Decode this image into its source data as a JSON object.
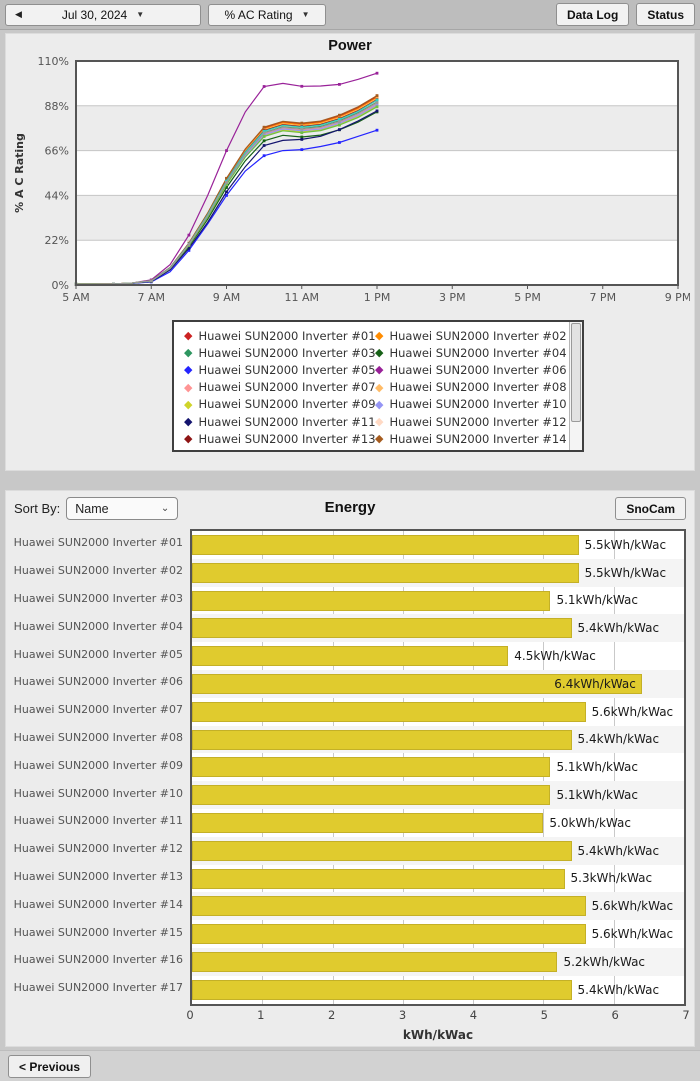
{
  "toolbar": {
    "prev_icon": "◀",
    "date": "Jul 30, 2024",
    "caret": "▼",
    "metric": "% AC Rating",
    "data_log": "Data Log",
    "status": "Status"
  },
  "energy_header": {
    "sort_by_label": "Sort By:",
    "sort_value": "Name",
    "sort_caret": "⌄",
    "snocam": "SnoCam"
  },
  "footer": {
    "previous": "< Previous"
  },
  "chart_data": [
    {
      "type": "line",
      "title": "Power",
      "ylabel": "% A C Rating",
      "xlim": [
        5,
        21
      ],
      "ylim": [
        0,
        110
      ],
      "yticks": [
        0,
        22,
        44,
        66,
        88,
        110
      ],
      "ytick_labels": [
        "0%",
        "22%",
        "44%",
        "66%",
        "88%",
        "110%"
      ],
      "xticks": [
        5,
        7,
        9,
        11,
        13,
        15,
        17,
        19,
        21
      ],
      "xtick_labels": [
        "5 AM",
        "7 AM",
        "9 AM",
        "11 AM",
        "1 PM",
        "3 PM",
        "5 PM",
        "7 PM",
        "9 PM"
      ],
      "x_hours": [
        5,
        5.5,
        6,
        6.5,
        7,
        7.5,
        8,
        8.5,
        9,
        9.5,
        10,
        10.5,
        11,
        11.5,
        12,
        12.5,
        13
      ],
      "legend_visible_count": 14,
      "band_colors": [
        "#ffffff",
        "#ececec"
      ],
      "series": [
        {
          "name": "Huawei SUN2000 Inverter #01",
          "color": "#cc2222",
          "values": [
            0.5,
            0.5,
            0.5,
            1.0,
            2.0,
            8.5,
            20.5,
            35.2,
            52.1,
            66.4,
            77.1,
            80.0,
            79.1,
            80.1,
            83.0,
            87.0,
            92.5
          ]
        },
        {
          "name": "Huawei SUN2000 Inverter #02",
          "color": "#ff8c00",
          "values": [
            0.5,
            0.5,
            0.5,
            1.0,
            2.0,
            8.5,
            20.4,
            35.0,
            51.8,
            66.1,
            76.6,
            79.6,
            78.7,
            79.7,
            82.5,
            86.6,
            92.0
          ]
        },
        {
          "name": "Huawei SUN2000 Inverter #03",
          "color": "#2e9660",
          "values": [
            0.5,
            0.5,
            0.5,
            1.0,
            2.0,
            8.3,
            20.0,
            34.2,
            50.7,
            64.6,
            75.0,
            77.9,
            77.0,
            77.9,
            80.7,
            84.7,
            90.0
          ]
        },
        {
          "name": "Huawei SUN2000 Inverter #04",
          "color": "#176117",
          "values": [
            0.4,
            0.4,
            0.4,
            0.9,
            1.9,
            7.8,
            18.9,
            32.3,
            47.9,
            61.0,
            70.8,
            73.5,
            72.7,
            73.6,
            76.2,
            80.0,
            85.0
          ]
        },
        {
          "name": "Huawei SUN2000 Inverter #05",
          "color": "#2424ff",
          "values": [
            0.3,
            0.3,
            0.4,
            0.8,
            1.5,
            6.5,
            17.0,
            30.0,
            44.0,
            56.0,
            63.5,
            66.0,
            66.5,
            68.0,
            70.0,
            73.0,
            76.0
          ]
        },
        {
          "name": "Huawei SUN2000 Inverter #06",
          "color": "#992299",
          "values": [
            0.3,
            0.3,
            0.4,
            1.0,
            2.5,
            10.0,
            24.5,
            44.0,
            66.0,
            85.0,
            97.5,
            99.0,
            97.6,
            97.7,
            98.5,
            101.0,
            104.0
          ]
        },
        {
          "name": "Huawei SUN2000 Inverter #07",
          "color": "#ff9494",
          "values": [
            0.4,
            0.4,
            0.5,
            1.0,
            2.0,
            8.2,
            19.8,
            33.8,
            50.1,
            63.9,
            74.1,
            77.0,
            76.1,
            77.1,
            79.8,
            83.7,
            89.0
          ]
        },
        {
          "name": "Huawei SUN2000 Inverter #08",
          "color": "#ffbb66",
          "values": [
            0.5,
            0.5,
            0.5,
            1.0,
            2.0,
            8.4,
            20.3,
            34.8,
            51.5,
            65.7,
            76.2,
            79.1,
            78.2,
            79.2,
            82.1,
            86.1,
            91.5
          ]
        },
        {
          "name": "Huawei SUN2000 Inverter #09",
          "color": "#cfd42a",
          "values": [
            0.4,
            0.4,
            0.4,
            1.0,
            1.9,
            8.1,
            19.5,
            33.4,
            49.5,
            63.2,
            73.3,
            76.1,
            75.2,
            76.2,
            78.9,
            82.8,
            88.0
          ]
        },
        {
          "name": "Huawei SUN2000 Inverter #10",
          "color": "#9595f5",
          "values": [
            0.4,
            0.4,
            0.4,
            1.0,
            1.9,
            8.1,
            19.6,
            33.6,
            49.8,
            63.5,
            73.7,
            76.6,
            75.7,
            76.6,
            79.4,
            83.3,
            88.5
          ]
        },
        {
          "name": "Huawei SUN2000 Inverter #11",
          "color": "#14146e",
          "values": [
            0.4,
            0.4,
            0.4,
            0.9,
            1.7,
            7.4,
            18.0,
            30.8,
            45.7,
            58.1,
            68.5,
            71.0,
            71.5,
            73.0,
            76.3,
            80.6,
            85.5
          ]
        },
        {
          "name": "Huawei SUN2000 Inverter #12",
          "color": "#ffd9c4",
          "values": [
            0.5,
            0.5,
            0.5,
            1.0,
            2.0,
            8.3,
            20.1,
            34.4,
            50.9,
            65.0,
            75.4,
            78.3,
            77.4,
            78.4,
            81.2,
            85.2,
            90.5
          ]
        },
        {
          "name": "Huawei SUN2000 Inverter #13",
          "color": "#8e1414",
          "values": [
            0.5,
            0.5,
            0.5,
            1.0,
            2.0,
            8.4,
            20.2,
            34.6,
            51.2,
            65.3,
            75.8,
            78.7,
            77.8,
            78.8,
            81.6,
            85.6,
            91.0
          ]
        },
        {
          "name": "Huawei SUN2000 Inverter #14",
          "color": "#a65c1f",
          "values": [
            0.5,
            0.5,
            0.5,
            1.0,
            2.1,
            8.6,
            20.6,
            35.3,
            52.4,
            66.8,
            77.5,
            80.4,
            79.5,
            80.5,
            83.4,
            87.5,
            93.0
          ]
        },
        {
          "name": "Huawei SUN2000 Inverter #15",
          "color": "#2fd0c3",
          "values": [
            0.5,
            0.5,
            0.5,
            1.0,
            2.0,
            8.4,
            20.1,
            34.5,
            51.0,
            65.1,
            75.5,
            78.4,
            77.5,
            78.5,
            81.3,
            85.3,
            90.8
          ]
        },
        {
          "name": "Huawei SUN2000 Inverter #16",
          "color": "#6fbf44",
          "values": [
            0.4,
            0.4,
            0.4,
            1.0,
            1.9,
            8.1,
            19.4,
            33.3,
            49.3,
            62.8,
            72.9,
            75.7,
            74.8,
            75.8,
            78.5,
            82.3,
            87.5
          ]
        },
        {
          "name": "Huawei SUN2000 Inverter #17",
          "color": "#9a9a9a",
          "values": [
            0.4,
            0.4,
            0.5,
            1.0,
            2.0,
            8.2,
            19.9,
            34.0,
            50.4,
            64.3,
            74.6,
            77.4,
            76.5,
            77.5,
            80.3,
            84.2,
            89.5
          ]
        }
      ]
    },
    {
      "type": "bar",
      "title": "Energy",
      "xlabel": "kWh/kWac",
      "xlim": [
        0,
        7
      ],
      "xticks": [
        0,
        1,
        2,
        3,
        4,
        5,
        6,
        7
      ],
      "bar_color": "#e0cb2e",
      "rows": [
        {
          "name": "Huawei SUN2000 Inverter #01",
          "value": 5.5,
          "label": "5.5kWh/kWac"
        },
        {
          "name": "Huawei SUN2000 Inverter #02",
          "value": 5.5,
          "label": "5.5kWh/kWac"
        },
        {
          "name": "Huawei SUN2000 Inverter #03",
          "value": 5.1,
          "label": "5.1kWh/kWac"
        },
        {
          "name": "Huawei SUN2000 Inverter #04",
          "value": 5.4,
          "label": "5.4kWh/kWac"
        },
        {
          "name": "Huawei SUN2000 Inverter #05",
          "value": 4.5,
          "label": "4.5kWh/kWac"
        },
        {
          "name": "Huawei SUN2000 Inverter #06",
          "value": 6.4,
          "label": "6.4kWh/kWac"
        },
        {
          "name": "Huawei SUN2000 Inverter #07",
          "value": 5.6,
          "label": "5.6kWh/kWac"
        },
        {
          "name": "Huawei SUN2000 Inverter #08",
          "value": 5.4,
          "label": "5.4kWh/kWac"
        },
        {
          "name": "Huawei SUN2000 Inverter #09",
          "value": 5.1,
          "label": "5.1kWh/kWac"
        },
        {
          "name": "Huawei SUN2000 Inverter #10",
          "value": 5.1,
          "label": "5.1kWh/kWac"
        },
        {
          "name": "Huawei SUN2000 Inverter #11",
          "value": 5.0,
          "label": "5.0kWh/kWac"
        },
        {
          "name": "Huawei SUN2000 Inverter #12",
          "value": 5.4,
          "label": "5.4kWh/kWac"
        },
        {
          "name": "Huawei SUN2000 Inverter #13",
          "value": 5.3,
          "label": "5.3kWh/kWac"
        },
        {
          "name": "Huawei SUN2000 Inverter #14",
          "value": 5.6,
          "label": "5.6kWh/kWac"
        },
        {
          "name": "Huawei SUN2000 Inverter #15",
          "value": 5.6,
          "label": "5.6kWh/kWac"
        },
        {
          "name": "Huawei SUN2000 Inverter #16",
          "value": 5.2,
          "label": "5.2kWh/kWac"
        },
        {
          "name": "Huawei SUN2000 Inverter #17",
          "value": 5.4,
          "label": "5.4kWh/kWac"
        }
      ]
    }
  ]
}
